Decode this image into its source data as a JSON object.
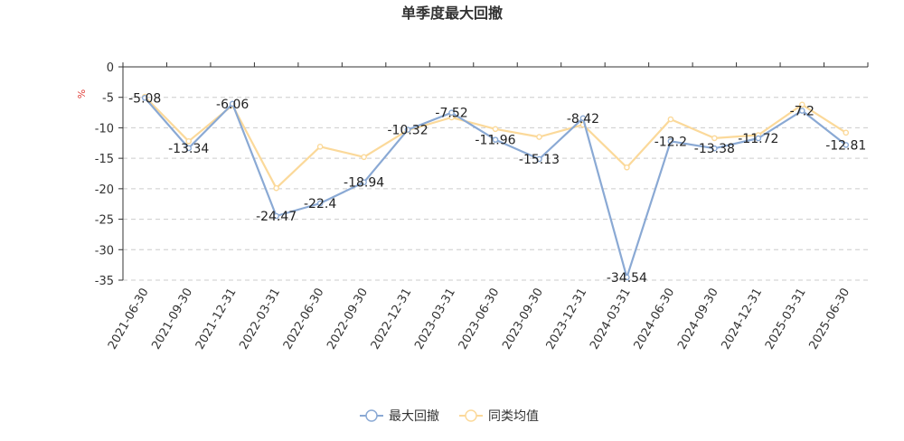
{
  "chart_data": {
    "type": "line",
    "title": "单季度最大回撤",
    "ylabel": "%",
    "ylim": [
      -35,
      0
    ],
    "yticks": [
      0,
      -5,
      -10,
      -15,
      -20,
      -25,
      -30,
      -35
    ],
    "grid": true,
    "legend_position": "bottom-center",
    "categories": [
      "2021-06-30",
      "2021-09-30",
      "2021-12-31",
      "2022-03-31",
      "2022-06-30",
      "2022-09-30",
      "2022-12-31",
      "2023-03-31",
      "2023-06-30",
      "2023-09-30",
      "2023-12-31",
      "2024-03-31",
      "2024-06-30",
      "2024-09-30",
      "2024-12-31",
      "2025-03-31",
      "2025-06-30"
    ],
    "series": [
      {
        "name": "最大回撤",
        "color": "#8aa9d4",
        "labeled": true,
        "values": [
          -5.08,
          -13.34,
          -6.06,
          -24.47,
          -22.4,
          -18.94,
          -10.32,
          -7.52,
          -11.96,
          -15.13,
          -8.42,
          -34.54,
          -12.2,
          -13.38,
          -11.72,
          -7.2,
          -12.81
        ]
      },
      {
        "name": "同类均值",
        "color": "#fbd99a",
        "labeled": false,
        "values": [
          -4.9,
          -12.2,
          -6.3,
          -19.9,
          -13.1,
          -14.8,
          -10.4,
          -8.3,
          -10.2,
          -11.5,
          -9.5,
          -16.5,
          -8.6,
          -11.7,
          -11.2,
          -6.2,
          -10.8
        ]
      }
    ]
  }
}
